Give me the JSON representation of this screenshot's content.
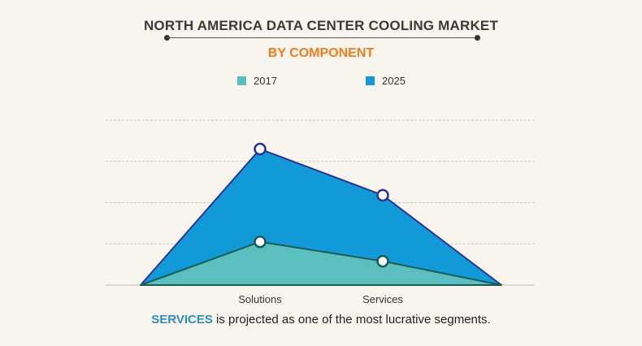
{
  "title": "NORTH AMERICA  DATA CENTER COOLING MARKET",
  "subtitle": "BY COMPONENT",
  "footnote": {
    "highlight": "SERVICES",
    "rest": " is projected as one of the most lucrative segments."
  },
  "colors": {
    "series_2017": "#5abfbe",
    "series_2025": "#129ad8",
    "series_2025_line": "#2b3390",
    "series_2017_line": "#1e5a55",
    "grid": "#c9c6c0",
    "accent": "#f07d1a"
  },
  "chart_data": {
    "type": "area",
    "title": "NORTH AMERICA  DATA CENTER COOLING MARKET",
    "subtitle": "BY COMPONENT",
    "categories": [
      "",
      "Solutions",
      "Services",
      ""
    ],
    "series": [
      {
        "name": "2017",
        "values": [
          0,
          1.05,
          0.58,
          0
        ]
      },
      {
        "name": "2025",
        "values": [
          0,
          3.3,
          2.18,
          0
        ]
      }
    ],
    "ylim": [
      0,
      4
    ],
    "grid": true,
    "legend": "top-center",
    "xlabel": "",
    "ylabel": ""
  }
}
